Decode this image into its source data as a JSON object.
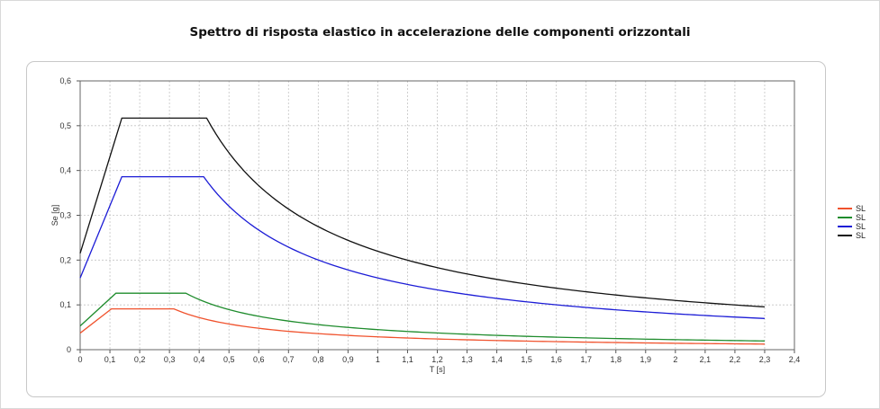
{
  "chart_data": {
    "type": "line",
    "title": "Spettro di risposta elastico in accelerazione delle componenti orizzontali",
    "xlabel": "T [s]",
    "ylabel": "Se [g]",
    "xlim": [
      0,
      2.4
    ],
    "ylim": [
      0,
      0.6
    ],
    "x_ticks": [
      "0",
      "0,1",
      "0,2",
      "0,3",
      "0,4",
      "0,5",
      "0,6",
      "0,7",
      "0,8",
      "0,9",
      "1",
      "1,1",
      "1,2",
      "1,3",
      "1,4",
      "1,5",
      "1,6",
      "1,7",
      "1,8",
      "1,9",
      "2",
      "2,1",
      "2,2",
      "2,3",
      "2,4"
    ],
    "y_ticks": [
      "0",
      "0,1",
      "0,2",
      "0,3",
      "0,4",
      "0,5",
      "0,6"
    ],
    "grid": true,
    "legend_position": "right",
    "series": [
      {
        "name": "SL",
        "color": "#f0522d",
        "ag": 0.037,
        "tb": 0.105,
        "tc": 0.315,
        "peak": 0.091,
        "tmax": 2.3
      },
      {
        "name": "SL",
        "color": "#1f8c2d",
        "ag": 0.053,
        "tb": 0.12,
        "tc": 0.355,
        "peak": 0.126,
        "tmax": 2.3
      },
      {
        "name": "SL",
        "color": "#1c1cd6",
        "ag": 0.16,
        "tb": 0.14,
        "tc": 0.415,
        "peak": 0.386,
        "tmax": 2.3
      },
      {
        "name": "SL",
        "color": "#111111",
        "ag": 0.215,
        "tb": 0.14,
        "tc": 0.425,
        "peak": 0.517,
        "tmax": 2.3
      }
    ]
  }
}
